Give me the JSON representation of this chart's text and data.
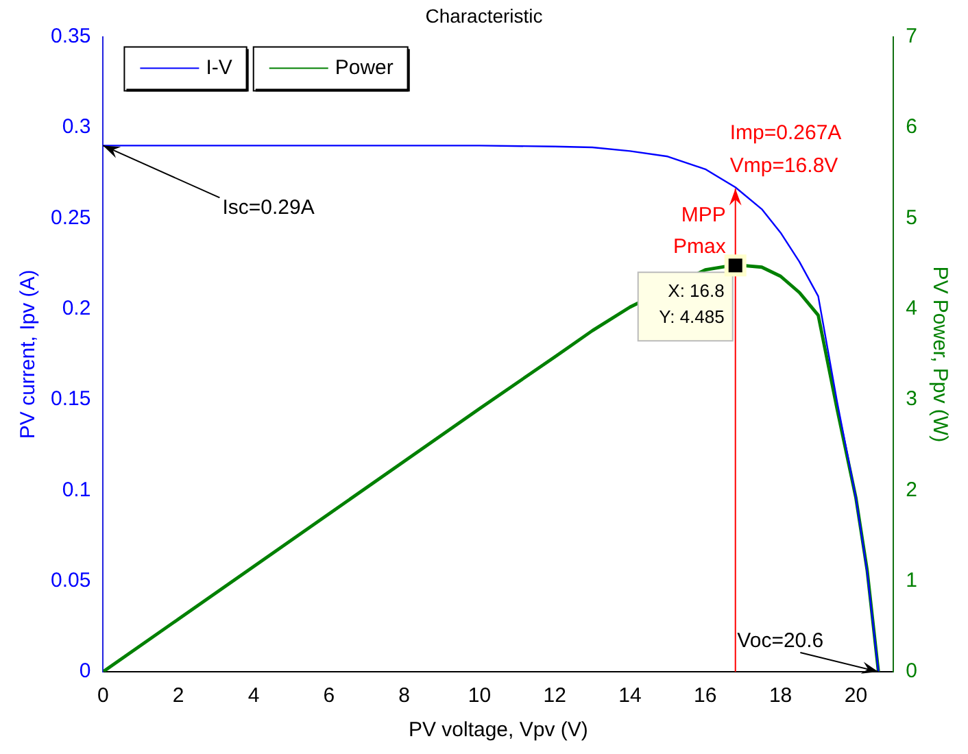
{
  "chart_data": {
    "type": "line",
    "title": "Characteristic",
    "xlabel": "PV voltage, Vpv (V)",
    "ylabel": "PV current, Ipv (A)",
    "y2label": "PV Power, Ppv (W)",
    "x": [
      0,
      2,
      4,
      6,
      8,
      10,
      12,
      13,
      14,
      15,
      16,
      16.8,
      17.5,
      18,
      18.5,
      19,
      19.5,
      20,
      20.3,
      20.6
    ],
    "series": [
      {
        "name": "I-V",
        "color": "#0000ff",
        "axis": "y",
        "values": [
          0.29,
          0.29,
          0.29,
          0.29,
          0.29,
          0.29,
          0.2895,
          0.289,
          0.287,
          0.284,
          0.277,
          0.267,
          0.255,
          0.242,
          0.226,
          0.207,
          0.149,
          0.096,
          0.055,
          0
        ]
      },
      {
        "name": "Power",
        "color": "#008000",
        "axis": "y2",
        "values": [
          0,
          0.58,
          1.16,
          1.74,
          2.32,
          2.9,
          3.47,
          3.76,
          4.02,
          null,
          4.43,
          4.485,
          4.46,
          4.36,
          4.18,
          3.93,
          2.9,
          1.92,
          1.12,
          0
        ]
      }
    ],
    "xlim": [
      0,
      21
    ],
    "xticks": [
      0,
      2,
      4,
      6,
      8,
      10,
      12,
      14,
      16,
      18,
      20
    ],
    "ylim": [
      0,
      0.35
    ],
    "yticks": [
      0,
      0.05,
      0.1,
      0.15,
      0.2,
      0.25,
      0.3,
      0.35
    ],
    "y2lim": [
      0,
      7
    ],
    "y2ticks": [
      0,
      1,
      2,
      3,
      4,
      5,
      6,
      7
    ],
    "legend": "top left",
    "grid": false,
    "annotations": [
      {
        "text": "Isc=0.29A",
        "x": 0,
        "y": 0.29
      },
      {
        "text": "Imp=0.267A",
        "x": 16.8,
        "y": 0.267
      },
      {
        "text": "Vmp=16.8V",
        "x": 16.8,
        "y": 0.267
      },
      "MPP",
      "Pmax",
      "X: 16.8",
      "Y: 4.485",
      {
        "text": "Voc=20.6",
        "x": 20.6,
        "y": 0
      }
    ]
  }
}
